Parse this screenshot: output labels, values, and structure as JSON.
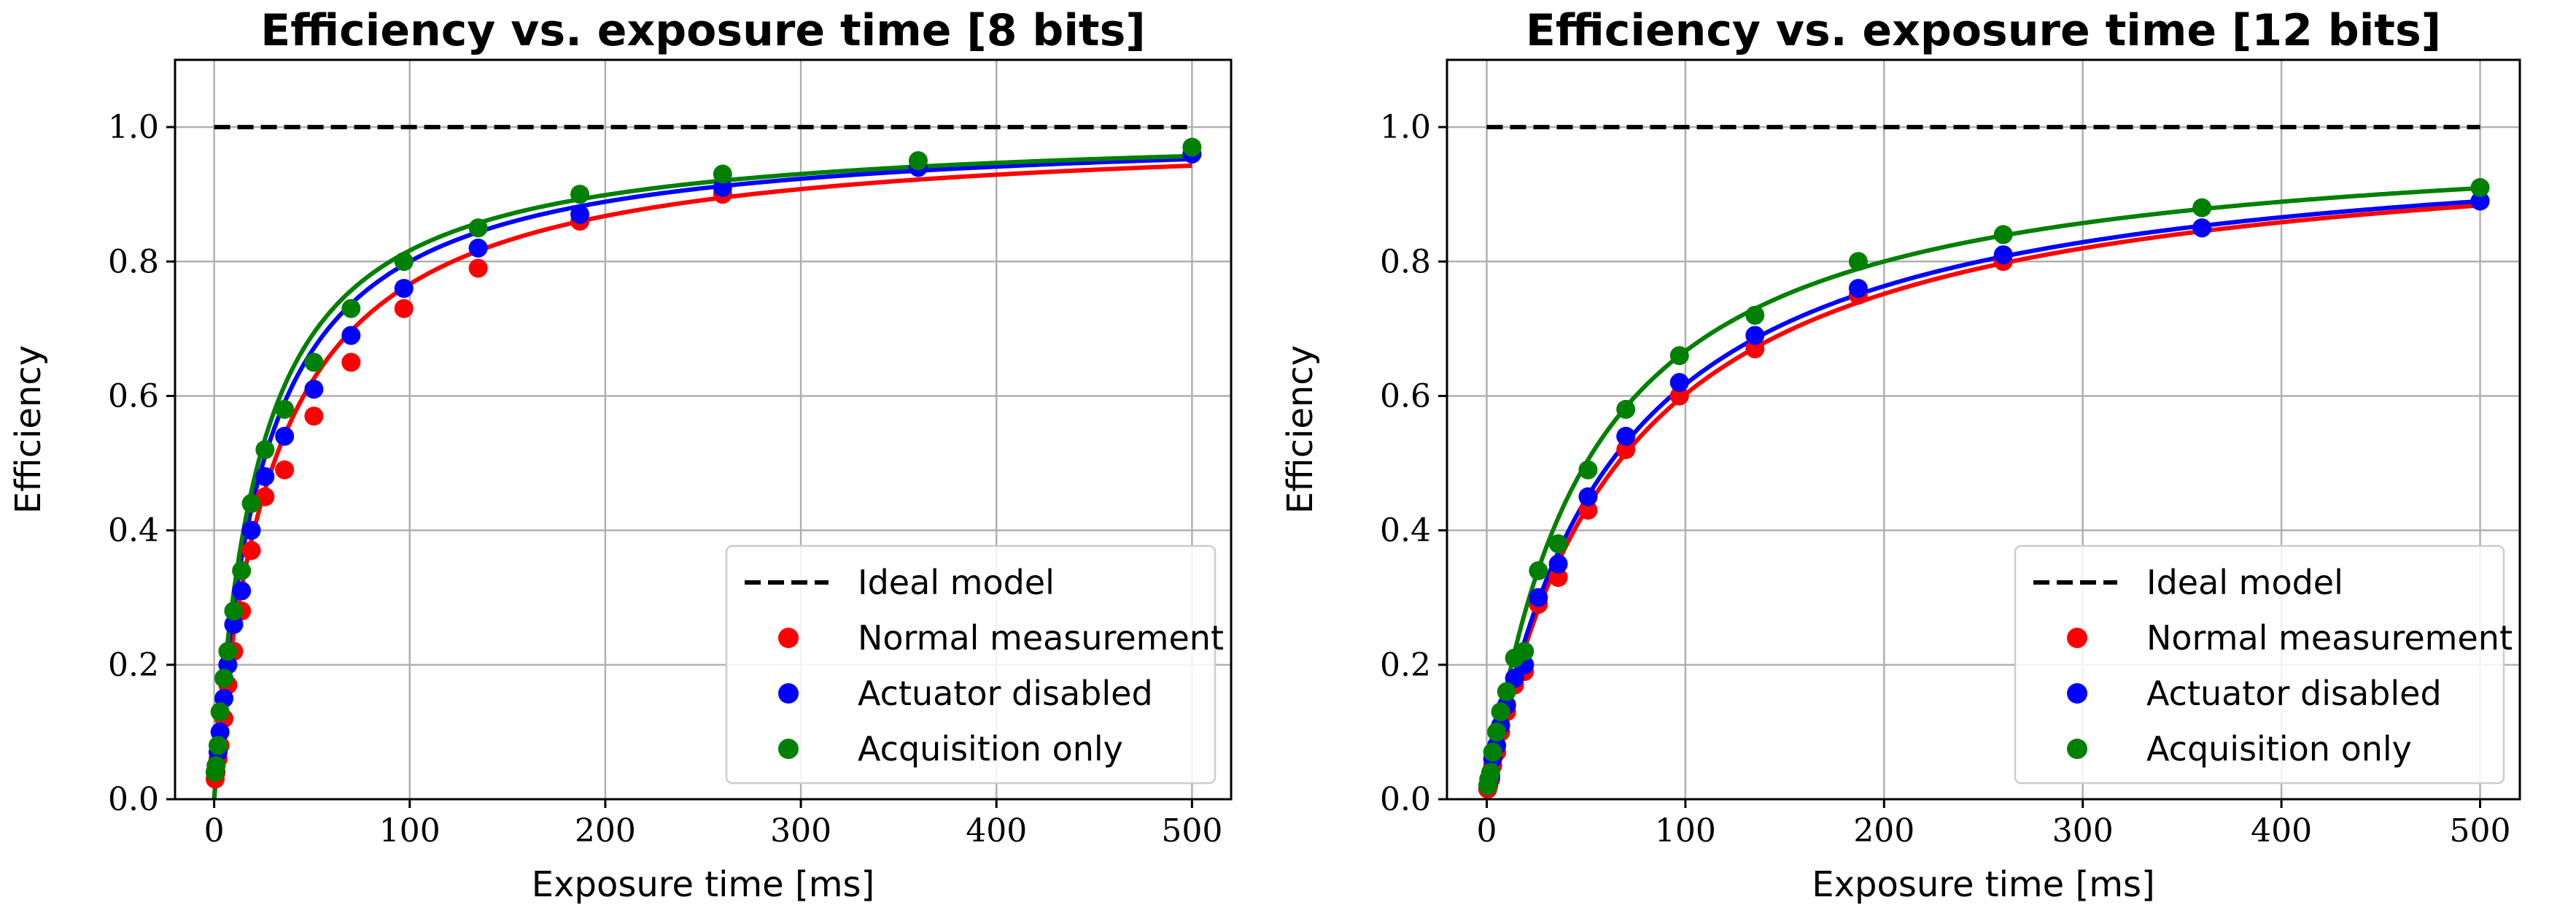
{
  "chart_data": [
    {
      "type": "scatter",
      "title": "Efficiency vs. exposure time [8 bits]",
      "xlabel": "Exposure time [ms]",
      "ylabel": "Efficiency",
      "xlim": [
        -20,
        520
      ],
      "ylim": [
        0.0,
        1.1
      ],
      "xticks": [
        0,
        100,
        200,
        300,
        400,
        500
      ],
      "xtick_labels": [
        "0",
        "100",
        "200",
        "300",
        "400",
        "500"
      ],
      "yticks": [
        0.0,
        0.2,
        0.4,
        0.6,
        0.8,
        1.0
      ],
      "ytick_labels": [
        "0.0",
        "0.2",
        "0.4",
        "0.6",
        "0.8",
        "1.0"
      ],
      "grid": true,
      "legend_position": "lower-right",
      "ideal": {
        "name": "Ideal model",
        "x": [
          0,
          500
        ],
        "y": [
          1.0,
          1.0
        ],
        "color": "#000000",
        "style": "dashed"
      },
      "x": [
        0.5,
        1,
        2,
        3,
        5,
        7,
        10,
        14,
        19,
        26,
        36,
        51,
        70,
        97,
        135,
        187,
        260,
        360,
        500
      ],
      "series": [
        {
          "name": "Normal measurement",
          "color": "#ff0000",
          "values": [
            0.03,
            0.04,
            0.06,
            0.08,
            0.12,
            0.17,
            0.22,
            0.28,
            0.37,
            0.45,
            0.49,
            0.57,
            0.65,
            0.73,
            0.79,
            0.86,
            0.9,
            0.94,
            0.96
          ],
          "fit_tau": 30.5
        },
        {
          "name": "Actuator disabled",
          "color": "#0000ff",
          "values": [
            0.04,
            0.05,
            0.07,
            0.1,
            0.15,
            0.2,
            0.26,
            0.31,
            0.4,
            0.48,
            0.54,
            0.61,
            0.69,
            0.76,
            0.82,
            0.87,
            0.91,
            0.94,
            0.96
          ],
          "fit_tau": 25.0
        },
        {
          "name": "Acquisition only",
          "color": "#008000",
          "values": [
            0.04,
            0.05,
            0.08,
            0.13,
            0.18,
            0.22,
            0.28,
            0.34,
            0.44,
            0.52,
            0.58,
            0.65,
            0.73,
            0.8,
            0.85,
            0.9,
            0.93,
            0.95,
            0.97
          ],
          "fit_tau": 22.5
        }
      ]
    },
    {
      "type": "scatter",
      "title": "Efficiency vs. exposure time [12 bits]",
      "xlabel": "Exposure time [ms]",
      "ylabel": "Efficiency",
      "xlim": [
        -20,
        520
      ],
      "ylim": [
        0.0,
        1.1
      ],
      "xticks": [
        0,
        100,
        200,
        300,
        400,
        500
      ],
      "xtick_labels": [
        "0",
        "100",
        "200",
        "300",
        "400",
        "500"
      ],
      "yticks": [
        0.0,
        0.2,
        0.4,
        0.6,
        0.8,
        1.0
      ],
      "ytick_labels": [
        "0.0",
        "0.2",
        "0.4",
        "0.6",
        "0.8",
        "1.0"
      ],
      "grid": true,
      "legend_position": "lower-right",
      "ideal": {
        "name": "Ideal model",
        "x": [
          0,
          500
        ],
        "y": [
          1.0,
          1.0
        ],
        "color": "#000000",
        "style": "dashed"
      },
      "x": [
        0.5,
        1,
        2,
        3,
        5,
        7,
        10,
        14,
        19,
        26,
        36,
        51,
        70,
        97,
        135,
        187,
        260,
        360,
        500
      ],
      "series": [
        {
          "name": "Normal measurement",
          "color": "#ff0000",
          "values": [
            0.015,
            0.02,
            0.03,
            0.05,
            0.07,
            0.1,
            0.13,
            0.17,
            0.19,
            0.29,
            0.33,
            0.43,
            0.52,
            0.6,
            0.67,
            0.75,
            0.8,
            0.85,
            0.89
          ],
          "fit_tau": 66.0
        },
        {
          "name": "Actuator disabled",
          "color": "#0000ff",
          "values": [
            0.02,
            0.025,
            0.035,
            0.06,
            0.08,
            0.11,
            0.14,
            0.18,
            0.2,
            0.3,
            0.35,
            0.45,
            0.54,
            0.62,
            0.69,
            0.76,
            0.81,
            0.85,
            0.89
          ],
          "fit_tau": 62.0
        },
        {
          "name": "Acquisition only",
          "color": "#008000",
          "values": [
            0.02,
            0.03,
            0.04,
            0.07,
            0.1,
            0.13,
            0.16,
            0.21,
            0.22,
            0.34,
            0.38,
            0.49,
            0.58,
            0.66,
            0.72,
            0.8,
            0.84,
            0.88,
            0.91
          ],
          "fit_tau": 50.0
        }
      ]
    }
  ]
}
